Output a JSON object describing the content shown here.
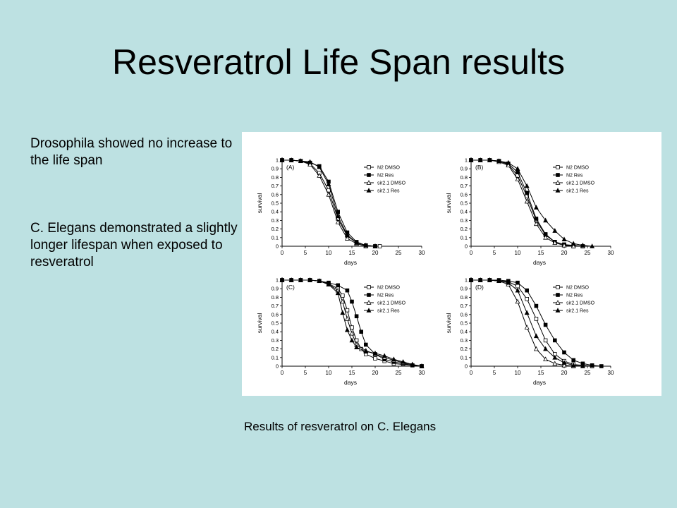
{
  "slide": {
    "title": "Resveratrol Life Span results",
    "paragraphs": [
      "Drosophila showed no increase to the life span",
      "C. Elegans demonstrated a slightly longer lifespan when exposed to resveratrol"
    ],
    "caption": "Results of resveratrol on C. Elegans",
    "background_color": "#bde1e2"
  },
  "chart_data": [
    {
      "type": "line",
      "panel_label": "(A)",
      "xlabel": "days",
      "ylabel": "survival",
      "xlim": [
        0,
        30
      ],
      "ylim": [
        0,
        1
      ],
      "xticks": [
        0,
        5,
        10,
        15,
        20,
        25,
        30
      ],
      "yticks": [
        0,
        0.1,
        0.2,
        0.3,
        0.4,
        0.5,
        0.6,
        0.7,
        0.8,
        0.9,
        1
      ],
      "series": [
        {
          "name": "N2 DMSO",
          "marker": "open-square",
          "x": [
            0,
            2,
            4,
            6,
            8,
            10,
            12,
            14,
            16,
            18,
            20,
            21
          ],
          "y": [
            1,
            1,
            0.99,
            0.96,
            0.85,
            0.65,
            0.32,
            0.12,
            0.04,
            0.01,
            0,
            0
          ]
        },
        {
          "name": "N2 Res",
          "marker": "filled-square",
          "x": [
            0,
            2,
            4,
            6,
            8,
            10,
            12,
            14,
            16,
            18,
            20
          ],
          "y": [
            1,
            1,
            0.99,
            0.97,
            0.93,
            0.75,
            0.4,
            0.16,
            0.05,
            0.01,
            0
          ]
        },
        {
          "name": "sir2.1 DMSO",
          "marker": "open-triangle",
          "x": [
            0,
            2,
            4,
            6,
            8,
            10,
            12,
            14,
            16,
            18,
            20
          ],
          "y": [
            1,
            1,
            0.99,
            0.95,
            0.82,
            0.6,
            0.28,
            0.09,
            0.03,
            0,
            0
          ]
        },
        {
          "name": "sir2.1 Res",
          "marker": "filled-triangle",
          "x": [
            0,
            2,
            4,
            6,
            8,
            10,
            12,
            14,
            16,
            18,
            20
          ],
          "y": [
            1,
            1,
            0.99,
            0.98,
            0.92,
            0.72,
            0.35,
            0.13,
            0.04,
            0.01,
            0
          ]
        }
      ]
    },
    {
      "type": "line",
      "panel_label": "(B)",
      "xlabel": "days",
      "ylabel": "survival",
      "xlim": [
        0,
        30
      ],
      "ylim": [
        0,
        1
      ],
      "xticks": [
        0,
        5,
        10,
        15,
        20,
        25,
        30
      ],
      "yticks": [
        0,
        0.1,
        0.2,
        0.3,
        0.4,
        0.5,
        0.6,
        0.7,
        0.8,
        0.9,
        1
      ],
      "series": [
        {
          "name": "N2 DMSO",
          "marker": "open-square",
          "x": [
            0,
            2,
            4,
            6,
            8,
            10,
            12,
            14,
            16,
            18,
            20,
            22,
            24
          ],
          "y": [
            1,
            1,
            1,
            0.99,
            0.95,
            0.82,
            0.58,
            0.3,
            0.13,
            0.05,
            0.02,
            0.01,
            0
          ]
        },
        {
          "name": "N2 Res",
          "marker": "filled-square",
          "x": [
            0,
            2,
            4,
            6,
            8,
            10,
            12,
            14,
            16,
            18,
            20,
            22,
            24
          ],
          "y": [
            1,
            1,
            1,
            0.99,
            0.96,
            0.86,
            0.62,
            0.32,
            0.14,
            0.05,
            0.02,
            0,
            0
          ]
        },
        {
          "name": "sir2.1 DMSO",
          "marker": "open-triangle",
          "x": [
            0,
            2,
            4,
            6,
            8,
            10,
            12,
            14,
            16,
            18,
            20,
            22,
            24
          ],
          "y": [
            1,
            1,
            1,
            0.98,
            0.94,
            0.78,
            0.52,
            0.26,
            0.1,
            0.04,
            0.01,
            0,
            0
          ]
        },
        {
          "name": "sir2.1 Res",
          "marker": "filled-triangle",
          "x": [
            0,
            2,
            4,
            6,
            8,
            10,
            12,
            14,
            16,
            18,
            20,
            22,
            24,
            26
          ],
          "y": [
            1,
            1,
            1,
            0.99,
            0.97,
            0.9,
            0.7,
            0.45,
            0.3,
            0.18,
            0.08,
            0.03,
            0.01,
            0
          ]
        }
      ]
    },
    {
      "type": "line",
      "panel_label": "(C)",
      "xlabel": "days",
      "ylabel": "survival",
      "xlim": [
        0,
        30
      ],
      "ylim": [
        0,
        1
      ],
      "xticks": [
        0,
        5,
        10,
        15,
        20,
        25,
        30
      ],
      "yticks": [
        0,
        0.1,
        0.2,
        0.3,
        0.4,
        0.5,
        0.6,
        0.7,
        0.8,
        0.9,
        1
      ],
      "series": [
        {
          "name": "N2 DMSO",
          "marker": "open-square",
          "x": [
            0,
            2,
            4,
            6,
            8,
            10,
            12,
            13,
            14,
            15,
            16,
            17,
            18,
            20,
            22,
            24,
            26,
            28,
            30
          ],
          "y": [
            1,
            1,
            1,
            1,
            0.99,
            0.96,
            0.9,
            0.82,
            0.65,
            0.45,
            0.3,
            0.2,
            0.14,
            0.09,
            0.06,
            0.03,
            0.02,
            0.01,
            0
          ]
        },
        {
          "name": "N2 Res",
          "marker": "filled-square",
          "x": [
            0,
            2,
            4,
            6,
            8,
            10,
            12,
            14,
            15,
            16,
            17,
            18,
            20,
            22,
            24,
            26,
            28,
            30
          ],
          "y": [
            1,
            1,
            1,
            1,
            0.99,
            0.97,
            0.94,
            0.88,
            0.75,
            0.58,
            0.4,
            0.25,
            0.14,
            0.08,
            0.05,
            0.03,
            0.01,
            0
          ]
        },
        {
          "name": "sir2.1 DMSO",
          "marker": "open-triangle",
          "x": [
            0,
            2,
            4,
            6,
            8,
            10,
            12,
            13,
            14,
            15,
            16,
            18,
            20,
            22,
            24,
            26,
            28,
            30
          ],
          "y": [
            1,
            1,
            1,
            1,
            0.99,
            0.95,
            0.88,
            0.75,
            0.55,
            0.38,
            0.25,
            0.18,
            0.14,
            0.1,
            0.07,
            0.04,
            0.02,
            0
          ]
        },
        {
          "name": "sir2.1 Res",
          "marker": "filled-triangle",
          "x": [
            0,
            2,
            4,
            6,
            8,
            10,
            12,
            13,
            14,
            15,
            16,
            18,
            20,
            22,
            24,
            26,
            28,
            30
          ],
          "y": [
            1,
            1,
            1,
            1,
            0.99,
            0.95,
            0.85,
            0.62,
            0.42,
            0.3,
            0.22,
            0.17,
            0.15,
            0.12,
            0.08,
            0.05,
            0.02,
            0
          ]
        }
      ]
    },
    {
      "type": "line",
      "panel_label": "(D)",
      "xlabel": "days",
      "ylabel": "survival",
      "xlim": [
        0,
        30
      ],
      "ylim": [
        0,
        1
      ],
      "xticks": [
        0,
        5,
        10,
        15,
        20,
        25,
        30
      ],
      "yticks": [
        0,
        0.1,
        0.2,
        0.3,
        0.4,
        0.5,
        0.6,
        0.7,
        0.8,
        0.9,
        1
      ],
      "series": [
        {
          "name": "N2 DMSO",
          "marker": "open-square",
          "x": [
            0,
            2,
            4,
            6,
            8,
            10,
            12,
            14,
            16,
            18,
            20,
            22,
            24,
            26
          ],
          "y": [
            1,
            1,
            1,
            0.99,
            0.98,
            0.93,
            0.78,
            0.55,
            0.3,
            0.14,
            0.06,
            0.02,
            0.01,
            0
          ]
        },
        {
          "name": "N2 Res",
          "marker": "filled-square",
          "x": [
            0,
            2,
            4,
            6,
            8,
            10,
            12,
            14,
            16,
            18,
            20,
            22,
            24,
            26,
            28
          ],
          "y": [
            1,
            1,
            1,
            1,
            0.99,
            0.97,
            0.88,
            0.7,
            0.48,
            0.3,
            0.16,
            0.07,
            0.03,
            0.01,
            0
          ]
        },
        {
          "name": "sir2.1 DMSO",
          "marker": "open-triangle",
          "x": [
            0,
            2,
            4,
            6,
            8,
            10,
            12,
            14,
            16,
            18,
            20,
            22
          ],
          "y": [
            1,
            1,
            1,
            0.99,
            0.95,
            0.75,
            0.45,
            0.2,
            0.08,
            0.03,
            0.01,
            0
          ]
        },
        {
          "name": "sir2.1 Res",
          "marker": "filled-triangle",
          "x": [
            0,
            2,
            4,
            6,
            8,
            10,
            12,
            14,
            16,
            18,
            20,
            22,
            24
          ],
          "y": [
            1,
            1,
            1,
            0.99,
            0.97,
            0.88,
            0.62,
            0.35,
            0.2,
            0.1,
            0.04,
            0.01,
            0
          ]
        }
      ]
    }
  ]
}
